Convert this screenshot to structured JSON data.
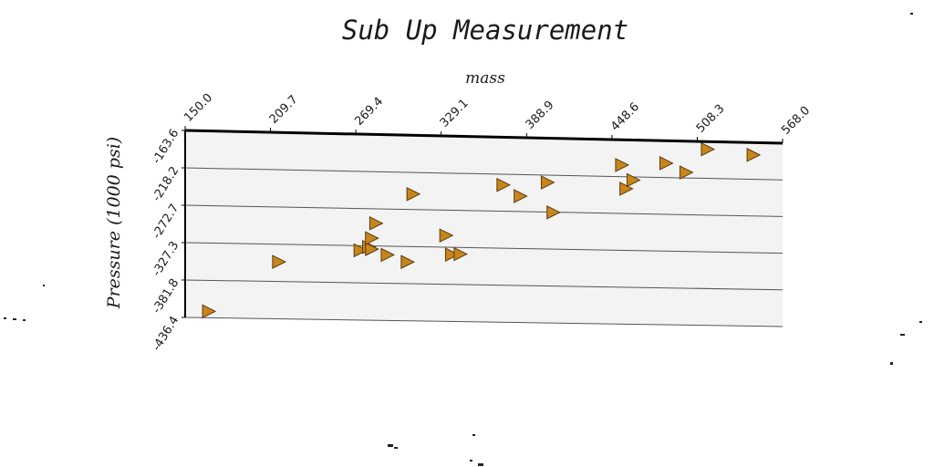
{
  "chart_data": {
    "type": "scatter",
    "title": "Sub Up Measurement",
    "xlabel": "mass",
    "ylabel": "Pressure (1000 psi)",
    "xlim": [
      150.0,
      568.0
    ],
    "ylim": [
      -436.4,
      -163.6
    ],
    "x_ticks": [
      "150.0",
      "209.7",
      "269.4",
      "329.1",
      "388.9",
      "448.6",
      "508.3",
      "568.0"
    ],
    "y_ticks": [
      "-163.6",
      "-218.2",
      "-272.7",
      "-327.3",
      "-381.8",
      "-436.4"
    ],
    "grid": "horizontal",
    "marker": "triangle-right",
    "marker_color": "#c8861a",
    "x_axis_position": "top",
    "series": [
      {
        "points": [
          {
            "x": 166,
            "y": -427
          },
          {
            "x": 215,
            "y": -353
          },
          {
            "x": 272,
            "y": -334
          },
          {
            "x": 278,
            "y": -329
          },
          {
            "x": 280,
            "y": -332
          },
          {
            "x": 280,
            "y": -316
          },
          {
            "x": 283,
            "y": -294
          },
          {
            "x": 291,
            "y": -340
          },
          {
            "x": 305,
            "y": -350
          },
          {
            "x": 309,
            "y": -250
          },
          {
            "x": 332,
            "y": -310
          },
          {
            "x": 336,
            "y": -338
          },
          {
            "x": 342,
            "y": -337
          },
          {
            "x": 372,
            "y": -234
          },
          {
            "x": 384,
            "y": -250
          },
          {
            "x": 403,
            "y": -229
          },
          {
            "x": 407,
            "y": -273
          },
          {
            "x": 455,
            "y": -201
          },
          {
            "x": 458,
            "y": -236
          },
          {
            "x": 463,
            "y": -223
          },
          {
            "x": 486,
            "y": -197
          },
          {
            "x": 500,
            "y": -210
          },
          {
            "x": 515,
            "y": -175
          },
          {
            "x": 547,
            "y": -182
          }
        ]
      }
    ]
  }
}
